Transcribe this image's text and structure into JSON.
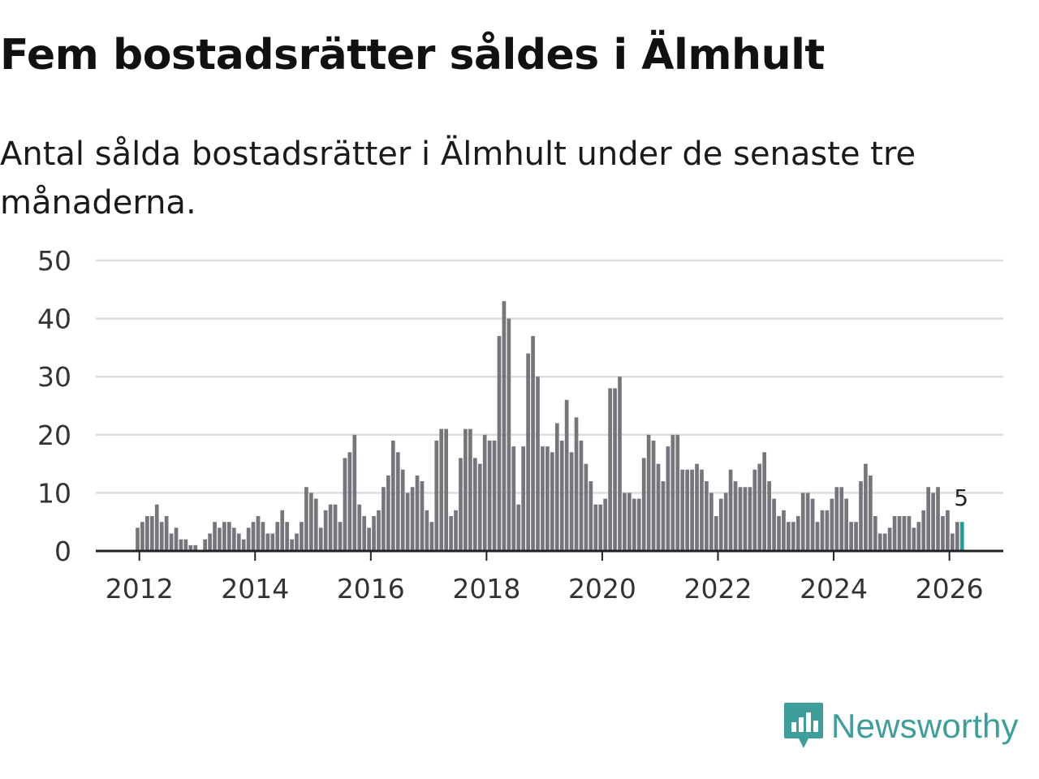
{
  "header": {
    "title": "Fem bostadsrätter såldes i Älmhult",
    "subtitle": "Antal sålda bostadsrätter i Älmhult under de senaste tre månaderna."
  },
  "brand": {
    "name": "Newsworthy",
    "color": "#3e9e9a"
  },
  "colors": {
    "bar": "#76757b",
    "highlight": "#1aa09a",
    "grid": "#dddddd",
    "axis": "#222222"
  },
  "chart_data": {
    "type": "bar",
    "title": "Fem bostadsrätter såldes i Älmhult",
    "subtitle": "Antal sålda bostadsrätter i Älmhult under de senaste tre månaderna.",
    "xlabel": "",
    "ylabel": "",
    "ylim": [
      0,
      50
    ],
    "yticks": [
      0,
      10,
      20,
      30,
      40,
      50
    ],
    "xticks": [
      2012,
      2014,
      2016,
      2018,
      2020,
      2022,
      2024,
      2026
    ],
    "x_start": {
      "year": 2012,
      "month": 1
    },
    "highlight_label": "5",
    "highlight_count": 1,
    "values": [
      4,
      5,
      6,
      6,
      8,
      5,
      6,
      3,
      4,
      2,
      2,
      1,
      1,
      0,
      2,
      3,
      5,
      4,
      5,
      5,
      4,
      3,
      2,
      4,
      5,
      6,
      5,
      3,
      3,
      5,
      7,
      5,
      2,
      3,
      5,
      11,
      10,
      9,
      4,
      7,
      8,
      8,
      5,
      16,
      17,
      20,
      8,
      6,
      4,
      6,
      7,
      11,
      13,
      19,
      17,
      14,
      10,
      11,
      13,
      12,
      7,
      5,
      19,
      21,
      21,
      6,
      7,
      16,
      21,
      21,
      16,
      15,
      20,
      19,
      19,
      37,
      43,
      40,
      18,
      8,
      18,
      34,
      37,
      30,
      18,
      18,
      17,
      22,
      19,
      26,
      17,
      23,
      19,
      15,
      12,
      8,
      8,
      9,
      28,
      28,
      30,
      10,
      10,
      9,
      9,
      16,
      20,
      19,
      15,
      12,
      18,
      20,
      20,
      14,
      14,
      14,
      15,
      14,
      12,
      10,
      6,
      9,
      10,
      14,
      12,
      11,
      11,
      11,
      14,
      15,
      17,
      12,
      9,
      6,
      7,
      5,
      5,
      6,
      10,
      10,
      9,
      5,
      7,
      7,
      9,
      11,
      11,
      9,
      5,
      5,
      12,
      15,
      13,
      6,
      3,
      3,
      4,
      6,
      6,
      6,
      6,
      4,
      5,
      7,
      11,
      10,
      11,
      6,
      7,
      3,
      5,
      5
    ]
  }
}
